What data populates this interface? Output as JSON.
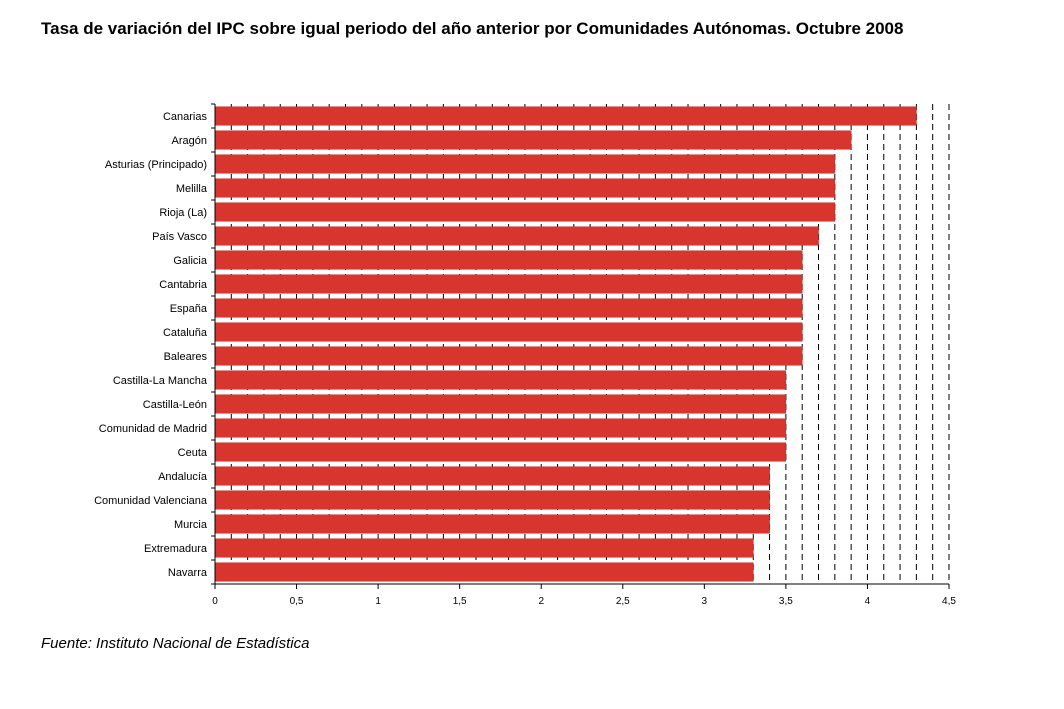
{
  "title": "Tasa de variación del IPC sobre igual periodo del año anterior por Comunidades Autónomas. Octubre 2008",
  "source": "Fuente: Instituto Nacional de Estadística",
  "chart_data": {
    "type": "bar",
    "orientation": "horizontal",
    "title": "Tasa de variación del IPC sobre igual periodo del año anterior por Comunidades Autónomas. Octubre 2008",
    "xlabel": "",
    "ylabel": "",
    "xlim": [
      0,
      4.5
    ],
    "xticks": [
      "0",
      "0,5",
      "1",
      "1,5",
      "2",
      "2,5",
      "3",
      "3,5",
      "4",
      "4,5"
    ],
    "grid": "vertical dashed lines",
    "bar_color": "#d8352f",
    "categories": [
      "Canarias",
      "Aragón",
      "Asturias (Principado)",
      "Melilla",
      "Rioja (La)",
      "País Vasco",
      "Galicia",
      "Cantabria",
      "España",
      "Cataluña",
      "Baleares",
      "Castilla-La Mancha",
      "Castilla-León",
      "Comunidad de Madrid",
      "Ceuta",
      "Andalucía",
      "Comunidad Valenciana",
      "Murcia",
      "Extremadura",
      "Navarra"
    ],
    "values": [
      4.3,
      3.9,
      3.8,
      3.8,
      3.8,
      3.7,
      3.6,
      3.6,
      3.6,
      3.6,
      3.6,
      3.5,
      3.5,
      3.5,
      3.5,
      3.4,
      3.4,
      3.4,
      3.3,
      3.3
    ]
  }
}
